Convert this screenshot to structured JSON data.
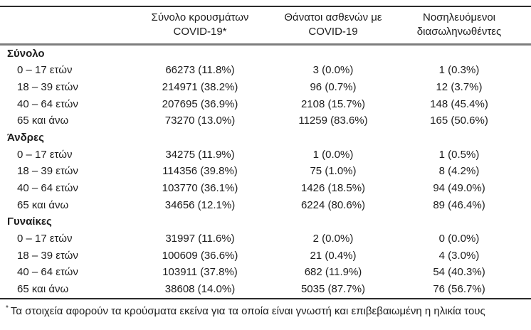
{
  "table": {
    "columns": [
      {
        "line1": "Σύνολο κρουσμάτων",
        "line2": "COVID-19*"
      },
      {
        "line1": "Θάνατοι ασθενών με",
        "line2": "COVID-19"
      },
      {
        "line1": "Νοσηλευόμενοι",
        "line2": "διασωληνωθέντες"
      }
    ],
    "groups": [
      {
        "label": "Σύνολο",
        "rows": [
          {
            "label": "0 – 17 ετών",
            "cases": "66273 (11.8%)",
            "deaths": "3 (0.0%)",
            "intubated": "1 (0.3%)"
          },
          {
            "label": "18 – 39 ετών",
            "cases": "214971 (38.2%)",
            "deaths": "96 (0.7%)",
            "intubated": "12 (3.7%)"
          },
          {
            "label": "40 – 64 ετών",
            "cases": "207695 (36.9%)",
            "deaths": "2108 (15.7%)",
            "intubated": "148 (45.4%)"
          },
          {
            "label": "65 και άνω",
            "cases": "73270 (13.0%)",
            "deaths": "11259 (83.6%)",
            "intubated": "165 (50.6%)"
          }
        ]
      },
      {
        "label": "Άνδρες",
        "rows": [
          {
            "label": "0 – 17 ετών",
            "cases": "34275 (11.9%)",
            "deaths": "1 (0.0%)",
            "intubated": "1 (0.5%)"
          },
          {
            "label": "18 – 39 ετών",
            "cases": "114356 (39.8%)",
            "deaths": "75 (1.0%)",
            "intubated": "8 (4.2%)"
          },
          {
            "label": "40 – 64 ετών",
            "cases": "103770 (36.1%)",
            "deaths": "1426 (18.5%)",
            "intubated": "94 (49.0%)"
          },
          {
            "label": "65 και άνω",
            "cases": "34656 (12.1%)",
            "deaths": "6224 (80.6%)",
            "intubated": "89 (46.4%)"
          }
        ]
      },
      {
        "label": "Γυναίκες",
        "rows": [
          {
            "label": "0 – 17 ετών",
            "cases": "31997 (11.6%)",
            "deaths": "2 (0.0%)",
            "intubated": "0 (0.0%)"
          },
          {
            "label": "18 – 39 ετών",
            "cases": "100609 (36.6%)",
            "deaths": "21 (0.4%)",
            "intubated": "4 (3.0%)"
          },
          {
            "label": "40 – 64 ετών",
            "cases": "103911 (37.8%)",
            "deaths": "682 (11.9%)",
            "intubated": "54 (40.3%)"
          },
          {
            "label": "65 και άνω",
            "cases": "38608 (14.0%)",
            "deaths": "5035 (87.7%)",
            "intubated": "76 (56.7%)"
          }
        ]
      }
    ],
    "footnote": {
      "marker": "*",
      "text": "Τα στοιχεία αφορούν τα κρούσματα εκείνα για τα οποία είναι γνωστή και επιβεβαιωμένη η ηλικία τους"
    },
    "colors": {
      "text": "#1d1d1d",
      "rule_dark": "#2b2b2b",
      "rule_gray": "#7d7d7d",
      "background": "#ffffff"
    }
  }
}
